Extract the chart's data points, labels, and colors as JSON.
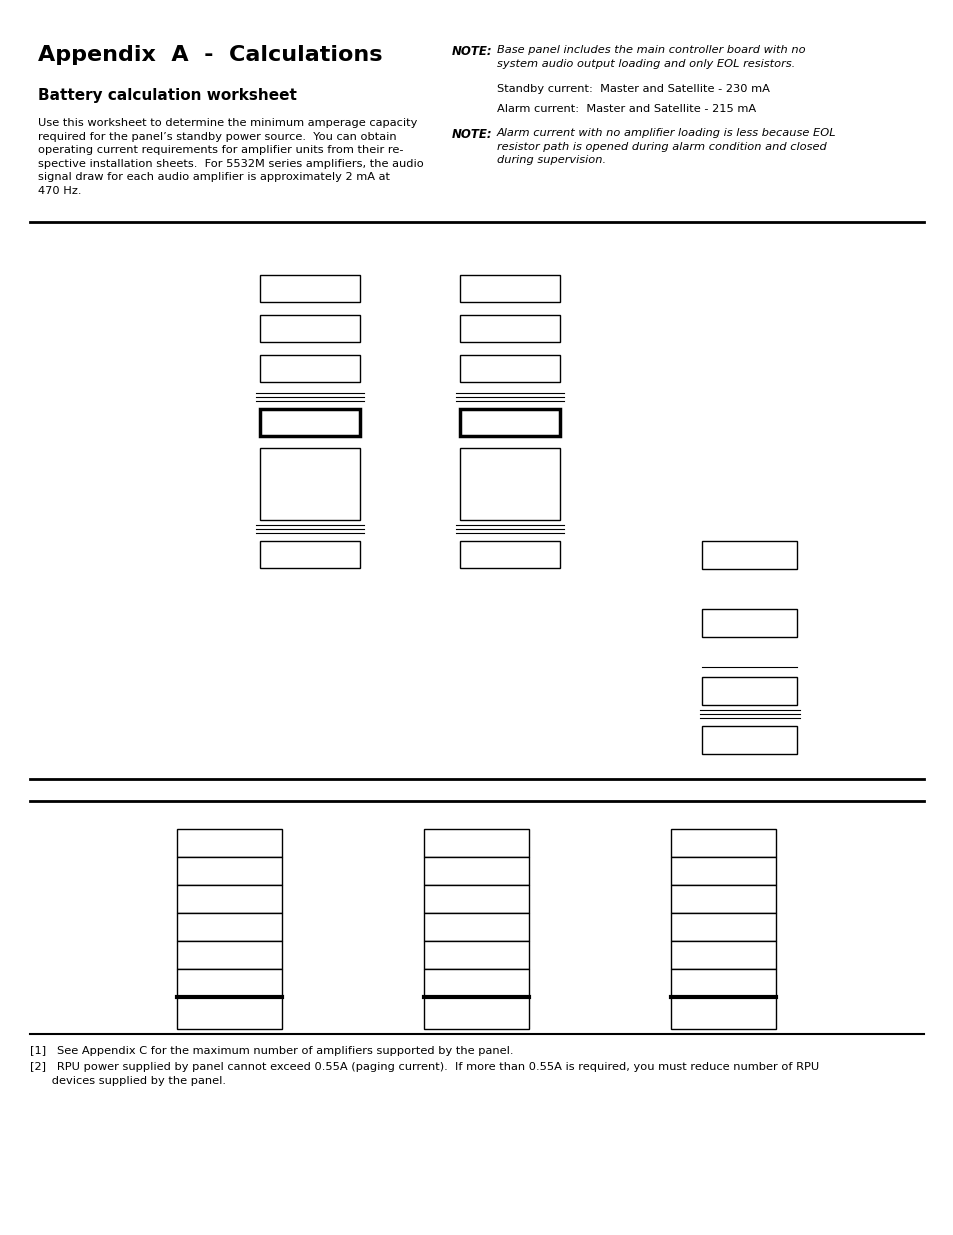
{
  "title": "Appendix  A  -  Calculations",
  "subtitle": "Battery calculation worksheet",
  "body_text": "Use this worksheet to determine the minimum amperage capacity\nrequired for the panel’s standby power source.  You can obtain\noperating current requirements for amplifier units from their re-\nspective installation sheets.  For 5532M series amplifiers, the audio\nsignal draw for each audio amplifier is approximately 2 mA at\n470 Hz.",
  "note1_label": "NOTE:",
  "note1_text": "Base panel includes the main controller board with no\nsystem audio output loading and only EOL resistors.",
  "note1b_text": "Standby current:  Master and Satellite - 230 mA",
  "note1c_text": "Alarm current:  Master and Satellite - 215 mA",
  "note2_label": "NOTE:",
  "note2_text": "Alarm current with no amplifier loading is less because EOL\nresistor path is opened during alarm condition and closed\nduring supervision.",
  "footnote1": "[1]   See Appendix C for the maximum number of amplifiers supported by the panel.",
  "footnote2": "[2]   RPU power supplied by panel cannot exceed 0.55A (paging current).  If more than 0.55A is required, you must reduce number of RPU",
  "footnote2b": "      devices supplied by the panel.",
  "bg_color": "#ffffff",
  "text_color": "#000000"
}
